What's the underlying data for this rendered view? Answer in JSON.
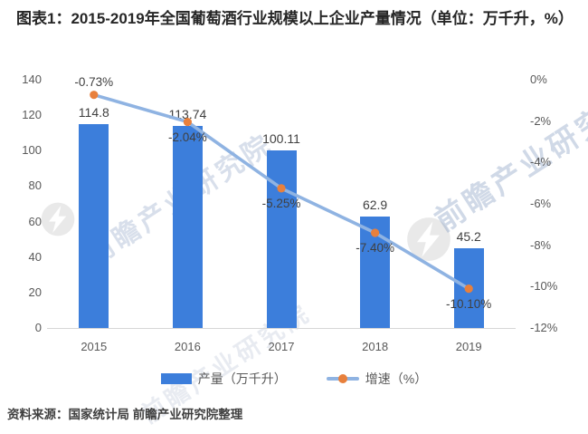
{
  "title": "图表1：2015-2019年全国葡萄酒行业规模以上企业产量情况（单位：万千升，%）",
  "source": "资料来源：国家统计局  前瞻产业研究院整理",
  "watermark": {
    "text": "前瞻产业研究院"
  },
  "legend": [
    {
      "label": "产量（万千升）",
      "type": "bar"
    },
    {
      "label": "增速（%）",
      "type": "line"
    }
  ],
  "colors": {
    "bar": "#3c7edb",
    "line": "#8fb3e2",
    "marker": "#e8803c",
    "axis_text": "#595959",
    "label_text": "#404040",
    "baseline": "#d6d6d6"
  },
  "chart_data": {
    "type": "bar",
    "subtype": "bar-line-combo",
    "categories": [
      "2015",
      "2016",
      "2017",
      "2018",
      "2019"
    ],
    "series": [
      {
        "name": "产量（万千升）",
        "type": "bar",
        "axis": "left",
        "values": [
          114.8,
          113.74,
          100.11,
          62.9,
          45.2
        ],
        "labels": [
          "114.8",
          "113.74",
          "100.11",
          "62.9",
          "45.2"
        ]
      },
      {
        "name": "增速（%）",
        "type": "line",
        "axis": "right",
        "values": [
          -0.73,
          -2.04,
          -5.25,
          -7.4,
          -10.1
        ],
        "labels": [
          "-0.73%",
          "-2.04%",
          "-5.25%",
          "-7.40%",
          "-10.10%"
        ]
      }
    ],
    "left_axis": {
      "ticks": [
        "140",
        "120",
        "100",
        "80",
        "60",
        "40",
        "20",
        "0"
      ],
      "min": 0,
      "max": 140
    },
    "right_axis": {
      "ticks": [
        "0%",
        "-2%",
        "-4%",
        "-6%",
        "-8%",
        "-10%",
        "-12%"
      ],
      "min": -12,
      "max": 0
    },
    "grid": false,
    "legend_position": "bottom",
    "title": "图表1：2015-2019年全国葡萄酒行业规模以上企业产量情况（单位：万千升，%）",
    "xlabel": "",
    "ylabel_left": "万千升",
    "ylabel_right": "%"
  }
}
